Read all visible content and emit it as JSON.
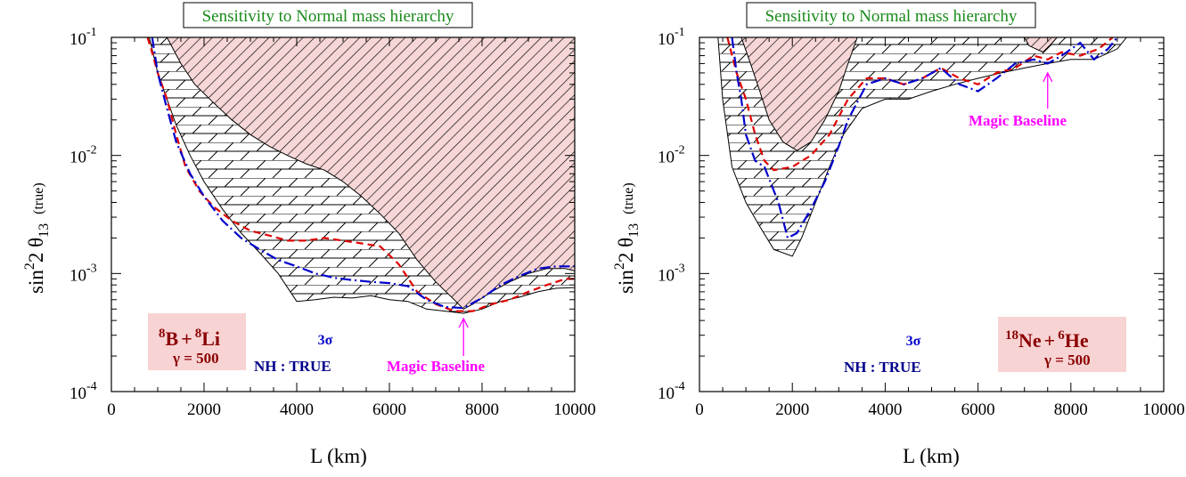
{
  "colors": {
    "title": "#1a8a1a",
    "hatch_fill": "#f6d6d6",
    "red_curve": "#e00000",
    "blue_curve": "#0000cc",
    "magic": "#ff00ff",
    "beam_label": "#8b0000",
    "beam_box": "#f8d3d3"
  },
  "chart_data": [
    {
      "type": "area",
      "title": "Sensitivity to Normal mass hierarchy",
      "xlabel": "L (km)",
      "ylabel_main": "sin",
      "ylabel_sup": "2",
      "ylabel_theta": "2 θ",
      "ylabel_sub": "13",
      "ylabel_note": "(true)",
      "xlim": [
        0,
        10000
      ],
      "ylim": [
        0.0001,
        0.1
      ],
      "yscale": "log",
      "xticks": [
        "0",
        "2000",
        "4000",
        "6000",
        "8000",
        "10000"
      ],
      "yticks": [
        {
          "base": "10",
          "exp": "-4"
        },
        {
          "base": "10",
          "exp": "-3"
        },
        {
          "base": "10",
          "exp": "-2"
        },
        {
          "base": "10",
          "exp": "-1"
        }
      ],
      "beam": {
        "line1": "B",
        "sup1": "8",
        "plus": "+",
        "sup2": "8",
        "line1b": "Li",
        "gamma": "γ = 500"
      },
      "sigma": "3σ",
      "nh": "NH : TRUE",
      "magic": "Magic Baseline",
      "magic_x": 7600,
      "lower_boundary": [
        [
          820,
          0.1
        ],
        [
          1000,
          0.05
        ],
        [
          1200,
          0.03
        ],
        [
          1400,
          0.018
        ],
        [
          1700,
          0.01
        ],
        [
          2000,
          0.006
        ],
        [
          2400,
          0.0035
        ],
        [
          2800,
          0.0022
        ],
        [
          3200,
          0.0015
        ],
        [
          3600,
          0.001
        ],
        [
          4000,
          0.00058
        ],
        [
          4400,
          0.0006
        ],
        [
          4800,
          0.00063
        ],
        [
          5200,
          0.00062
        ],
        [
          5600,
          0.00065
        ],
        [
          6000,
          0.0006
        ],
        [
          6400,
          0.00058
        ],
        [
          6800,
          0.0005
        ],
        [
          7200,
          0.00048
        ],
        [
          7600,
          0.00046
        ],
        [
          8000,
          0.0005
        ],
        [
          8400,
          0.00058
        ],
        [
          8800,
          0.00063
        ],
        [
          9200,
          0.0007
        ],
        [
          9600,
          0.00075
        ],
        [
          10000,
          0.00076
        ]
      ],
      "hatched_boundary": [
        [
          1200,
          0.1
        ],
        [
          1500,
          0.06
        ],
        [
          1800,
          0.04
        ],
        [
          2200,
          0.028
        ],
        [
          2600,
          0.02
        ],
        [
          3000,
          0.015
        ],
        [
          3400,
          0.012
        ],
        [
          3800,
          0.01
        ],
        [
          4200,
          0.0085
        ],
        [
          4600,
          0.0075
        ],
        [
          5000,
          0.006
        ],
        [
          5400,
          0.0045
        ],
        [
          5800,
          0.0032
        ],
        [
          6200,
          0.0022
        ],
        [
          6600,
          0.0013
        ],
        [
          7000,
          0.00085
        ],
        [
          7400,
          0.0006
        ],
        [
          7600,
          0.0005
        ],
        [
          7800,
          0.00055
        ],
        [
          8200,
          0.0007
        ],
        [
          8600,
          0.00085
        ],
        [
          9000,
          0.001
        ],
        [
          9400,
          0.0011
        ],
        [
          9800,
          0.0011
        ],
        [
          10000,
          0.00105
        ]
      ],
      "series": [
        {
          "color": "red",
          "style": "dashed",
          "points": [
            [
              780,
              0.1
            ],
            [
              900,
              0.07
            ],
            [
              1000,
              0.05
            ],
            [
              1200,
              0.03
            ],
            [
              1400,
              0.015
            ],
            [
              1600,
              0.008
            ],
            [
              1900,
              0.005
            ],
            [
              2200,
              0.0037
            ],
            [
              2600,
              0.0028
            ],
            [
              3000,
              0.0023
            ],
            [
              3400,
              0.0021
            ],
            [
              3800,
              0.0019
            ],
            [
              4200,
              0.0019
            ],
            [
              4600,
              0.002
            ],
            [
              5000,
              0.0019
            ],
            [
              5400,
              0.0018
            ],
            [
              5800,
              0.0017
            ],
            [
              6200,
              0.0012
            ],
            [
              6600,
              0.0007
            ],
            [
              7000,
              0.00055
            ],
            [
              7400,
              0.00048
            ],
            [
              7800,
              0.00048
            ],
            [
              8200,
              0.00055
            ],
            [
              8600,
              0.0006
            ],
            [
              9000,
              0.0007
            ],
            [
              9400,
              0.0008
            ],
            [
              9800,
              0.0009
            ],
            [
              10000,
              0.0009
            ]
          ]
        },
        {
          "color": "blue",
          "style": "dashdot",
          "points": [
            [
              880,
              0.1
            ],
            [
              1000,
              0.05
            ],
            [
              1200,
              0.025
            ],
            [
              1400,
              0.013
            ],
            [
              1700,
              0.007
            ],
            [
              2000,
              0.0045
            ],
            [
              2400,
              0.0028
            ],
            [
              2800,
              0.002
            ],
            [
              3200,
              0.0016
            ],
            [
              3600,
              0.0013
            ],
            [
              4000,
              0.00115
            ],
            [
              4400,
              0.001
            ],
            [
              4800,
              0.00092
            ],
            [
              5200,
              0.00088
            ],
            [
              5600,
              0.00085
            ],
            [
              6000,
              0.00083
            ],
            [
              6400,
              0.00078
            ],
            [
              6800,
              0.0006
            ],
            [
              7200,
              0.00052
            ],
            [
              7600,
              0.00051
            ],
            [
              8000,
              0.00062
            ],
            [
              8400,
              0.0008
            ],
            [
              8800,
              0.00095
            ],
            [
              9200,
              0.0011
            ],
            [
              9600,
              0.00115
            ],
            [
              10000,
              0.00115
            ]
          ]
        }
      ]
    },
    {
      "type": "area",
      "title": "Sensitivity to Normal mass hierarchy",
      "xlabel": "L (km)",
      "ylabel_main": "sin",
      "ylabel_sup": "2",
      "ylabel_theta": "2 θ",
      "ylabel_sub": "13",
      "ylabel_note": "(true)",
      "xlim": [
        0,
        10000
      ],
      "ylim": [
        0.0001,
        0.1
      ],
      "yscale": "log",
      "xticks": [
        "0",
        "2000",
        "4000",
        "6000",
        "8000",
        "10000"
      ],
      "yticks": [
        {
          "base": "10",
          "exp": "-4"
        },
        {
          "base": "10",
          "exp": "-3"
        },
        {
          "base": "10",
          "exp": "-2"
        },
        {
          "base": "10",
          "exp": "-1"
        }
      ],
      "beam": {
        "line1": "Ne",
        "sup1": "18",
        "plus": "+",
        "sup2": "6",
        "line1b": "He",
        "gamma": "γ = 500"
      },
      "sigma": "3σ",
      "nh": "NH : TRUE",
      "magic": "Magic Baseline",
      "magic_x": 7500,
      "lower_boundary": [
        [
          400,
          0.1
        ],
        [
          500,
          0.03
        ],
        [
          700,
          0.008
        ],
        [
          1000,
          0.004
        ],
        [
          1300,
          0.0025
        ],
        [
          1600,
          0.0016
        ],
        [
          2000,
          0.0014
        ],
        [
          2200,
          0.002
        ],
        [
          2500,
          0.004
        ],
        [
          2800,
          0.008
        ],
        [
          3100,
          0.015
        ],
        [
          3500,
          0.025
        ],
        [
          4000,
          0.03
        ],
        [
          4500,
          0.03
        ],
        [
          5000,
          0.035
        ],
        [
          5500,
          0.04
        ],
        [
          6000,
          0.045
        ],
        [
          6500,
          0.05
        ],
        [
          7000,
          0.055
        ],
        [
          7500,
          0.06
        ],
        [
          8000,
          0.065
        ],
        [
          8500,
          0.065
        ],
        [
          9000,
          0.08
        ],
        [
          9200,
          0.1
        ]
      ],
      "hatched_boundary": [
        [
          900,
          0.1
        ],
        [
          1100,
          0.06
        ],
        [
          1300,
          0.035
        ],
        [
          1500,
          0.02
        ],
        [
          1800,
          0.013
        ],
        [
          2100,
          0.011
        ],
        [
          2400,
          0.013
        ],
        [
          2700,
          0.02
        ],
        [
          3000,
          0.035
        ],
        [
          3200,
          0.06
        ],
        [
          3400,
          0.1
        ],
        [
          7000,
          0.1
        ],
        [
          7100,
          0.085
        ],
        [
          7400,
          0.075
        ],
        [
          7600,
          0.09
        ],
        [
          7700,
          0.1
        ],
        [
          8300,
          0.1
        ]
      ],
      "series": [
        {
          "color": "red",
          "style": "dashed",
          "points": [
            [
              600,
              0.1
            ],
            [
              800,
              0.05
            ],
            [
              1000,
              0.03
            ],
            [
              1200,
              0.015
            ],
            [
              1400,
              0.009
            ],
            [
              1600,
              0.0075
            ],
            [
              2000,
              0.008
            ],
            [
              2400,
              0.01
            ],
            [
              2800,
              0.015
            ],
            [
              3200,
              0.03
            ],
            [
              3600,
              0.045
            ],
            [
              4000,
              0.045
            ],
            [
              4400,
              0.04
            ],
            [
              4800,
              0.045
            ],
            [
              5200,
              0.055
            ],
            [
              5600,
              0.045
            ],
            [
              6000,
              0.04
            ],
            [
              6400,
              0.05
            ],
            [
              6800,
              0.055
            ],
            [
              7200,
              0.07
            ],
            [
              7500,
              0.065
            ],
            [
              7800,
              0.075
            ],
            [
              8200,
              0.07
            ],
            [
              8600,
              0.08
            ],
            [
              8900,
              0.1
            ]
          ]
        },
        {
          "color": "blue",
          "style": "dashdot",
          "points": [
            [
              700,
              0.1
            ],
            [
              800,
              0.05
            ],
            [
              900,
              0.03
            ],
            [
              1000,
              0.015
            ],
            [
              1200,
              0.009
            ],
            [
              1400,
              0.008
            ],
            [
              1700,
              0.004
            ],
            [
              1900,
              0.002
            ],
            [
              2100,
              0.0022
            ],
            [
              2400,
              0.0035
            ],
            [
              2700,
              0.006
            ],
            [
              3000,
              0.012
            ],
            [
              3200,
              0.02
            ],
            [
              3600,
              0.04
            ],
            [
              4000,
              0.045
            ],
            [
              4400,
              0.04
            ],
            [
              4800,
              0.045
            ],
            [
              5200,
              0.055
            ],
            [
              5600,
              0.04
            ],
            [
              6000,
              0.035
            ],
            [
              6400,
              0.045
            ],
            [
              6800,
              0.06
            ],
            [
              7200,
              0.065
            ],
            [
              7500,
              0.06
            ],
            [
              7800,
              0.07
            ],
            [
              8200,
              0.09
            ],
            [
              8500,
              0.065
            ],
            [
              8800,
              0.08
            ],
            [
              9000,
              0.1
            ]
          ]
        }
      ]
    }
  ]
}
